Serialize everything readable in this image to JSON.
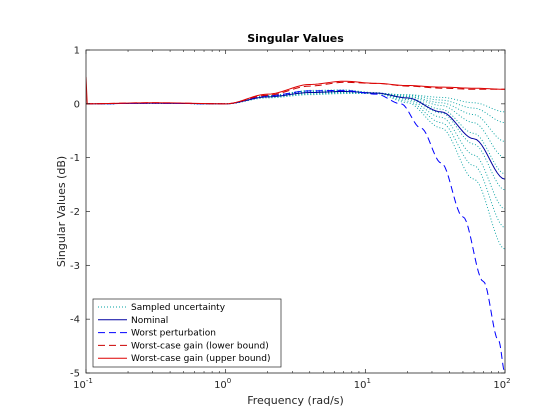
{
  "chart_data": {
    "type": "line",
    "title": "Singular Values",
    "xlabel": "Frequency (rad/s)",
    "ylabel": "Singular Values (dB)",
    "xscale": "log",
    "xlim": [
      0.1,
      100
    ],
    "ylim": [
      -5,
      1
    ],
    "grid": false,
    "legend_position": "bottom-left",
    "x_ticks": [
      {
        "value": 0.1,
        "base": "10",
        "exp": "-1"
      },
      {
        "value": 1,
        "base": "10",
        "exp": "0"
      },
      {
        "value": 10,
        "base": "10",
        "exp": "1"
      },
      {
        "value": 100,
        "base": "10",
        "exp": "2"
      }
    ],
    "y_ticks": [
      {
        "value": 1,
        "label": "1"
      },
      {
        "value": 0,
        "label": "0"
      },
      {
        "value": -1,
        "label": "-1"
      },
      {
        "value": -2,
        "label": "-2"
      },
      {
        "value": -3,
        "label": "-3"
      },
      {
        "value": -4,
        "label": "-4"
      },
      {
        "value": -5,
        "label": "-5"
      }
    ],
    "series": [
      {
        "name": "Sampled uncertainty",
        "style": "dotted",
        "color": "#00a0a0",
        "curves": [
          [
            [
              0.1,
              0
            ],
            [
              0.3,
              0.01
            ],
            [
              1,
              0.0
            ],
            [
              2,
              0.12
            ],
            [
              4,
              0.18
            ],
            [
              7,
              0.2
            ],
            [
              12,
              0.19
            ],
            [
              20,
              0.14
            ],
            [
              35,
              0.02
            ],
            [
              60,
              -0.2
            ],
            [
              100,
              -0.7
            ]
          ],
          [
            [
              0.1,
              0
            ],
            [
              0.3,
              0.01
            ],
            [
              1,
              0.0
            ],
            [
              2,
              0.12
            ],
            [
              4,
              0.2
            ],
            [
              7,
              0.21
            ],
            [
              12,
              0.2
            ],
            [
              20,
              0.16
            ],
            [
              35,
              0.07
            ],
            [
              60,
              -0.08
            ],
            [
              100,
              -0.35
            ]
          ],
          [
            [
              0.1,
              0
            ],
            [
              0.3,
              0.01
            ],
            [
              1,
              0.0
            ],
            [
              2,
              0.13
            ],
            [
              4,
              0.21
            ],
            [
              7,
              0.22
            ],
            [
              12,
              0.2
            ],
            [
              20,
              0.13
            ],
            [
              35,
              -0.03
            ],
            [
              60,
              -0.35
            ],
            [
              100,
              -1.0
            ]
          ],
          [
            [
              0.1,
              0
            ],
            [
              0.3,
              0.01
            ],
            [
              1,
              0.0
            ],
            [
              2,
              0.12
            ],
            [
              4,
              0.2
            ],
            [
              7,
              0.21
            ],
            [
              12,
              0.19
            ],
            [
              20,
              0.11
            ],
            [
              35,
              -0.1
            ],
            [
              60,
              -0.55
            ],
            [
              100,
              -1.3
            ]
          ],
          [
            [
              0.1,
              0
            ],
            [
              0.3,
              0.01
            ],
            [
              1,
              0.0
            ],
            [
              2,
              0.14
            ],
            [
              4,
              0.22
            ],
            [
              7,
              0.23
            ],
            [
              12,
              0.2
            ],
            [
              20,
              0.1
            ],
            [
              35,
              -0.17
            ],
            [
              60,
              -0.75
            ],
            [
              100,
              -1.6
            ]
          ],
          [
            [
              0.1,
              0
            ],
            [
              0.3,
              0.01
            ],
            [
              1,
              0.0
            ],
            [
              2,
              0.14
            ],
            [
              4,
              0.23
            ],
            [
              7,
              0.24
            ],
            [
              12,
              0.21
            ],
            [
              20,
              0.08
            ],
            [
              35,
              -0.25
            ],
            [
              60,
              -0.95
            ],
            [
              100,
              -1.95
            ]
          ],
          [
            [
              0.1,
              0
            ],
            [
              0.3,
              0.01
            ],
            [
              1,
              0.0
            ],
            [
              2,
              0.15
            ],
            [
              4,
              0.24
            ],
            [
              7,
              0.25
            ],
            [
              12,
              0.2
            ],
            [
              20,
              0.05
            ],
            [
              35,
              -0.35
            ],
            [
              60,
              -1.15
            ],
            [
              100,
              -2.3
            ]
          ],
          [
            [
              0.1,
              0
            ],
            [
              0.3,
              0.01
            ],
            [
              1,
              0.0
            ],
            [
              2,
              0.15
            ],
            [
              4,
              0.25
            ],
            [
              7,
              0.26
            ],
            [
              12,
              0.2
            ],
            [
              20,
              0.02
            ],
            [
              35,
              -0.45
            ],
            [
              60,
              -1.4
            ],
            [
              100,
              -2.7
            ]
          ],
          [
            [
              0.1,
              0
            ],
            [
              0.3,
              0.01
            ],
            [
              1,
              0.0
            ],
            [
              2,
              0.11
            ],
            [
              4,
              0.17
            ],
            [
              7,
              0.19
            ],
            [
              12,
              0.19
            ],
            [
              20,
              0.17
            ],
            [
              35,
              0.12
            ],
            [
              60,
              0.02
            ],
            [
              100,
              -0.15
            ]
          ]
        ]
      },
      {
        "name": "Nominal",
        "style": "solid",
        "color": "#0000a0",
        "curves": [
          [
            [
              0.1,
              0
            ],
            [
              0.3,
              0.01
            ],
            [
              1,
              0.0
            ],
            [
              2,
              0.13
            ],
            [
              4,
              0.21
            ],
            [
              7,
              0.23
            ],
            [
              12,
              0.2
            ],
            [
              20,
              0.11
            ],
            [
              35,
              -0.15
            ],
            [
              60,
              -0.65
            ],
            [
              100,
              -1.4
            ]
          ]
        ]
      },
      {
        "name": "Worst perturbation",
        "style": "dashed",
        "color": "#0000ff",
        "curves": [
          [
            [
              0.1,
              0
            ],
            [
              0.3,
              0.01
            ],
            [
              1,
              0.0
            ],
            [
              2,
              0.15
            ],
            [
              4,
              0.24
            ],
            [
              7,
              0.25
            ],
            [
              12,
              0.18
            ],
            [
              18,
              0.0
            ],
            [
              25,
              -0.45
            ],
            [
              35,
              -1.1
            ],
            [
              50,
              -2.1
            ],
            [
              70,
              -3.3
            ],
            [
              90,
              -4.4
            ],
            [
              100,
              -5.0
            ]
          ]
        ]
      },
      {
        "name": "Worst-case gain (lower bound)",
        "style": "dashed",
        "color": "#cc0000",
        "curves": [
          [
            [
              0.1,
              0
            ],
            [
              0.3,
              0.02
            ],
            [
              1,
              0.0
            ],
            [
              2,
              0.16
            ],
            [
              4,
              0.33
            ],
            [
              7,
              0.4
            ],
            [
              12,
              0.38
            ],
            [
              20,
              0.33
            ],
            [
              35,
              0.29
            ],
            [
              60,
              0.27
            ],
            [
              100,
              0.27
            ]
          ]
        ]
      },
      {
        "name": "Worst-case gain (upper bound)",
        "style": "solid",
        "color": "#dd0000",
        "curves": [
          [
            [
              0.1,
              0
            ],
            [
              0.3,
              0.02
            ],
            [
              1,
              0.0
            ],
            [
              2,
              0.18
            ],
            [
              4,
              0.36
            ],
            [
              7,
              0.42
            ],
            [
              12,
              0.38
            ],
            [
              20,
              0.34
            ],
            [
              35,
              0.31
            ],
            [
              60,
              0.29
            ],
            [
              100,
              0.27
            ]
          ]
        ]
      }
    ],
    "annotations": [
      {
        "note": "spike near x=0.1",
        "curve": [
          [
            0.1,
            0.5
          ],
          [
            0.102,
            0.0
          ],
          [
            0.105,
            0.0
          ]
        ],
        "color": "#dd0000"
      }
    ]
  }
}
